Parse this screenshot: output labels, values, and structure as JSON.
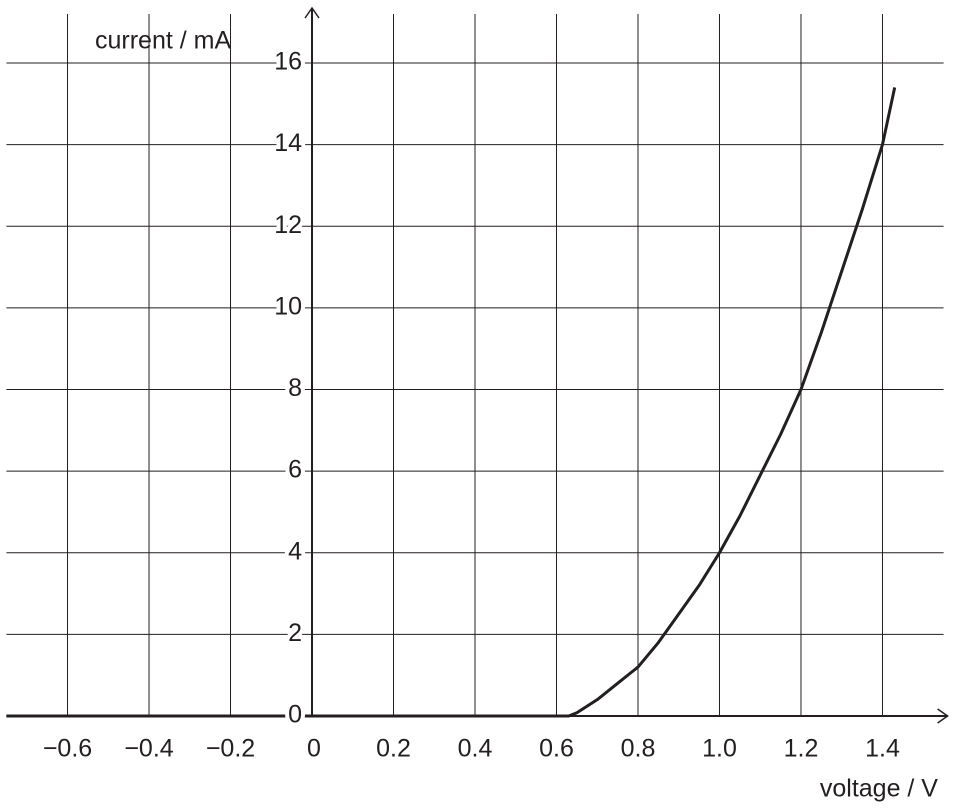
{
  "chart_data": {
    "type": "line",
    "xlabel": "voltage / V",
    "ylabel": "current / mA",
    "x": [
      -0.75,
      0,
      0.3,
      0.6,
      0.63,
      0.65,
      0.7,
      0.75,
      0.8,
      0.85,
      0.9,
      0.95,
      1.0,
      1.05,
      1.1,
      1.15,
      1.2,
      1.25,
      1.3,
      1.35,
      1.4,
      1.43
    ],
    "series": [
      {
        "name": "current",
        "color": "#231f20",
        "values": [
          0,
          0,
          0,
          0,
          0,
          0.08,
          0.4,
          0.8,
          1.2,
          1.8,
          2.5,
          3.2,
          4.0,
          4.9,
          5.9,
          6.9,
          8.0,
          9.4,
          10.9,
          12.4,
          14.0,
          15.4
        ]
      }
    ],
    "xlim": [
      -0.75,
      1.55
    ],
    "ylim": [
      0,
      17.2
    ],
    "xticks": [
      {
        "value": -0.6,
        "label": "−0.6"
      },
      {
        "value": -0.4,
        "label": "−0.4"
      },
      {
        "value": -0.2,
        "label": "−0.2"
      },
      0,
      0.2,
      0.4,
      0.6,
      0.8,
      {
        "value": 1.0,
        "label": "1.0"
      },
      1.2,
      1.4
    ],
    "yticks": [
      0,
      2,
      4,
      6,
      8,
      10,
      12,
      14,
      16
    ],
    "grid": true
  }
}
